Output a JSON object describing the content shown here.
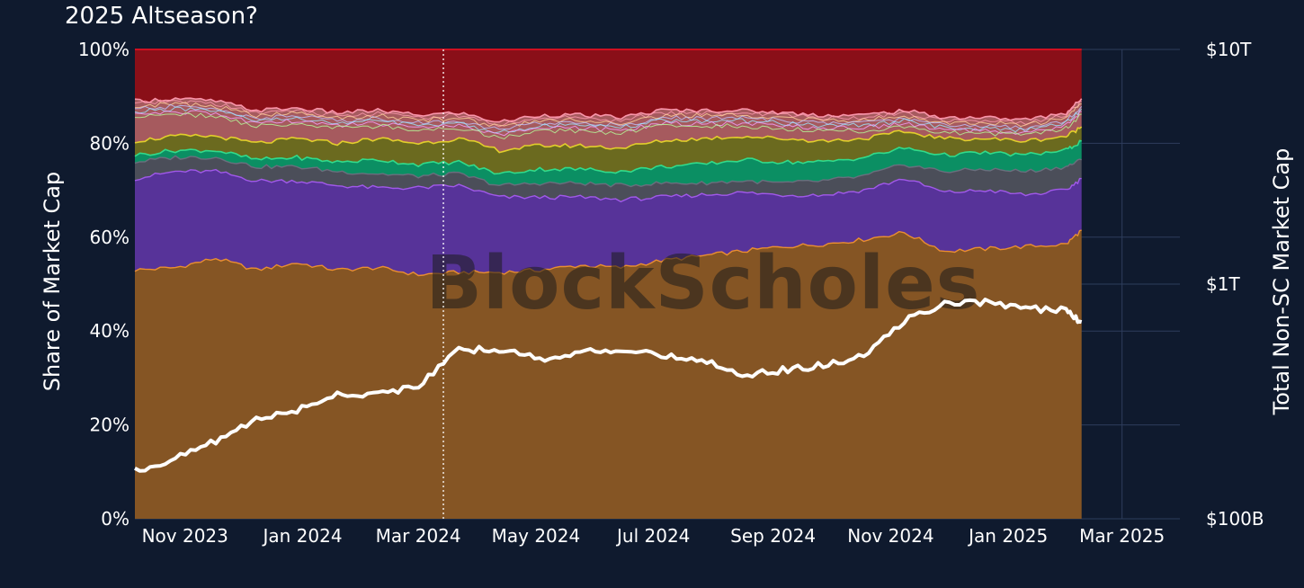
{
  "chart_data": {
    "type": "area",
    "title": "2025 Altseason?",
    "watermark": "BlockScholes",
    "stacked": true,
    "normalized": true,
    "x": [
      "2023-10-06",
      "2023-10-27",
      "2023-11-17",
      "2023-12-08",
      "2023-12-29",
      "2024-01-19",
      "2024-02-09",
      "2024-03-01",
      "2024-03-22",
      "2024-04-12",
      "2024-05-03",
      "2024-05-24",
      "2024-06-14",
      "2024-07-05",
      "2024-07-26",
      "2024-08-16",
      "2024-09-06",
      "2024-09-27",
      "2024-10-18",
      "2024-11-08",
      "2024-11-29",
      "2024-12-20",
      "2025-01-10",
      "2025-01-31",
      "2025-02-08"
    ],
    "xlim": [
      "2023-10-06",
      "2025-03-31"
    ],
    "x_ticks": [
      "Nov 2023",
      "Jan 2024",
      "Mar 2024",
      "May 2024",
      "Jul 2024",
      "Sep 2024",
      "Nov 2024",
      "Jan 2025",
      "Mar 2025"
    ],
    "x_tick_dates": [
      "2023-11-01",
      "2024-01-01",
      "2024-03-01",
      "2024-05-01",
      "2024-07-01",
      "2024-09-01",
      "2024-11-01",
      "2025-01-01",
      "2025-03-01"
    ],
    "vline_date": "2024-03-14",
    "ylabel": "Share of Market Cap",
    "ylim": [
      0,
      100
    ],
    "y_ticks": [
      "0%",
      "20%",
      "40%",
      "60%",
      "80%",
      "100%"
    ],
    "y2label": "Total Non-SC Market Cap",
    "y2_scale": "log",
    "y2lim": [
      100,
      10000
    ],
    "y2_unit": "billion USD",
    "y2_ticks": [
      "$100B",
      "$1T",
      "$10T"
    ],
    "y2_tick_values": [
      100,
      1000,
      10000
    ],
    "colors": {
      "background": "#0f1a2e",
      "grid": "#2e3d5c",
      "bitcoin": "#855524",
      "bitcoin_edge": "#f0922e",
      "ethereum": "#573399",
      "ethereum_edge": "#a55bf0",
      "grey": "#4b4e59",
      "green": "#0b8f63",
      "green_edge": "#32e08f",
      "olive": "#6b6a1f",
      "olive_edge": "#e7d52a",
      "salmon": "#a65a5e",
      "salmon_edge": "#ff9bb0",
      "rest": "#8a0f18",
      "rest_edge": "#c0c3ff",
      "total_line": "#ffffff",
      "vline": "#ffffff"
    },
    "series": [
      {
        "values": [
          53.0,
          53.5,
          55.5,
          53.0,
          54.5,
          53.0,
          53.5,
          52.0,
          52.5,
          52.5,
          53.0,
          54.0,
          53.5,
          55.0,
          56.0,
          57.0,
          58.0,
          58.5,
          59.5,
          61.0,
          57.0,
          57.5,
          58.0,
          58.5,
          61.5
        ]
      },
      {
        "values": [
          19.5,
          20.5,
          18.5,
          19.0,
          17.5,
          18.0,
          17.0,
          18.5,
          18.5,
          16.0,
          15.5,
          14.5,
          14.5,
          13.5,
          13.0,
          12.5,
          11.0,
          10.5,
          10.5,
          11.5,
          12.5,
          12.5,
          11.0,
          11.5,
          11.0
        ]
      },
      {
        "values": [
          3.5,
          3.0,
          3.0,
          3.0,
          3.0,
          3.0,
          3.0,
          2.5,
          2.5,
          2.5,
          3.0,
          3.0,
          3.0,
          3.0,
          2.5,
          2.5,
          2.5,
          3.0,
          3.0,
          3.0,
          4.5,
          4.5,
          5.0,
          5.0,
          4.0
        ]
      },
      {
        "values": [
          1.5,
          1.5,
          1.5,
          1.5,
          2.0,
          2.0,
          3.0,
          2.5,
          2.5,
          2.5,
          3.0,
          3.0,
          3.0,
          3.5,
          4.0,
          4.5,
          4.5,
          4.0,
          4.0,
          3.5,
          3.5,
          3.5,
          3.5,
          3.5,
          4.0
        ]
      },
      {
        "values": [
          3.0,
          3.0,
          3.0,
          3.5,
          4.0,
          4.0,
          4.5,
          4.5,
          5.0,
          5.0,
          5.0,
          5.0,
          5.0,
          5.5,
          5.5,
          5.0,
          5.0,
          4.5,
          4.0,
          3.5,
          3.5,
          3.0,
          3.0,
          3.0,
          3.0
        ]
      },
      {
        "values": [
          8.5,
          8.0,
          7.5,
          7.0,
          6.5,
          6.5,
          6.0,
          6.0,
          5.5,
          6.0,
          6.5,
          6.5,
          6.5,
          6.5,
          6.0,
          5.5,
          5.5,
          5.5,
          5.0,
          4.5,
          4.5,
          4.5,
          4.5,
          5.0,
          6.0
        ]
      },
      {
        "values": [
          11.0,
          10.5,
          11.0,
          13.0,
          12.5,
          13.5,
          13.0,
          14.0,
          13.5,
          15.5,
          14.0,
          14.0,
          14.5,
          13.0,
          13.0,
          13.0,
          13.5,
          14.0,
          14.0,
          13.0,
          14.5,
          14.5,
          15.0,
          13.5,
          10.5
        ]
      }
    ],
    "line": {
      "axis": "y2",
      "values": [
        160,
        180,
        215,
        265,
        290,
        340,
        340,
        370,
        520,
        530,
        480,
        510,
        530,
        490,
        480,
        410,
        430,
        450,
        490,
        700,
        820,
        840,
        790,
        770,
        690
      ]
    }
  }
}
